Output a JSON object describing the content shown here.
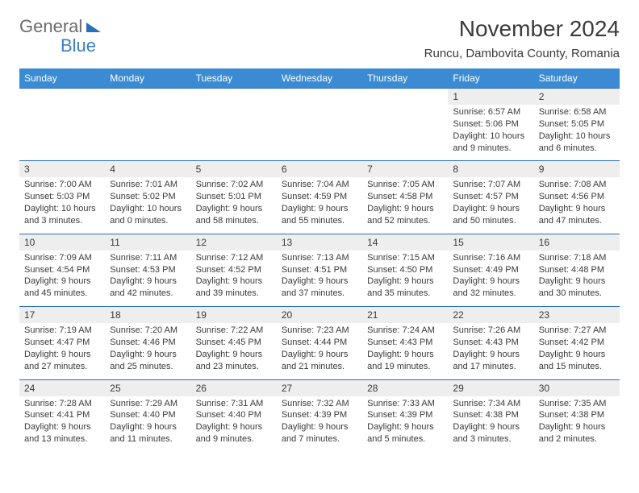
{
  "brand": {
    "part1": "General",
    "part2": "Blue"
  },
  "title": "November 2024",
  "location": "Runcu, Dambovita County, Romania",
  "colors": {
    "header_bg": "#3b8bd4",
    "header_text": "#ffffff",
    "daynum_bg": "#eeeeee",
    "rule": "#2b6fb3",
    "text": "#3a3a3a",
    "logo_gray": "#6b6b6b",
    "logo_blue": "#3b7fc4",
    "background": "#ffffff"
  },
  "typography": {
    "title_fontsize": 28,
    "location_fontsize": 15,
    "weekday_fontsize": 12,
    "daynum_fontsize": 12,
    "cell_fontsize": 11
  },
  "weekdays": [
    "Sunday",
    "Monday",
    "Tuesday",
    "Wednesday",
    "Thursday",
    "Friday",
    "Saturday"
  ],
  "weeks": [
    {
      "nums": [
        "",
        "",
        "",
        "",
        "",
        "1",
        "2"
      ],
      "cells": [
        null,
        null,
        null,
        null,
        null,
        {
          "sunrise": "Sunrise: 6:57 AM",
          "sunset": "Sunset: 5:06 PM",
          "daylight": "Daylight: 10 hours and 9 minutes."
        },
        {
          "sunrise": "Sunrise: 6:58 AM",
          "sunset": "Sunset: 5:05 PM",
          "daylight": "Daylight: 10 hours and 6 minutes."
        }
      ]
    },
    {
      "nums": [
        "3",
        "4",
        "5",
        "6",
        "7",
        "8",
        "9"
      ],
      "cells": [
        {
          "sunrise": "Sunrise: 7:00 AM",
          "sunset": "Sunset: 5:03 PM",
          "daylight": "Daylight: 10 hours and 3 minutes."
        },
        {
          "sunrise": "Sunrise: 7:01 AM",
          "sunset": "Sunset: 5:02 PM",
          "daylight": "Daylight: 10 hours and 0 minutes."
        },
        {
          "sunrise": "Sunrise: 7:02 AM",
          "sunset": "Sunset: 5:01 PM",
          "daylight": "Daylight: 9 hours and 58 minutes."
        },
        {
          "sunrise": "Sunrise: 7:04 AM",
          "sunset": "Sunset: 4:59 PM",
          "daylight": "Daylight: 9 hours and 55 minutes."
        },
        {
          "sunrise": "Sunrise: 7:05 AM",
          "sunset": "Sunset: 4:58 PM",
          "daylight": "Daylight: 9 hours and 52 minutes."
        },
        {
          "sunrise": "Sunrise: 7:07 AM",
          "sunset": "Sunset: 4:57 PM",
          "daylight": "Daylight: 9 hours and 50 minutes."
        },
        {
          "sunrise": "Sunrise: 7:08 AM",
          "sunset": "Sunset: 4:56 PM",
          "daylight": "Daylight: 9 hours and 47 minutes."
        }
      ]
    },
    {
      "nums": [
        "10",
        "11",
        "12",
        "13",
        "14",
        "15",
        "16"
      ],
      "cells": [
        {
          "sunrise": "Sunrise: 7:09 AM",
          "sunset": "Sunset: 4:54 PM",
          "daylight": "Daylight: 9 hours and 45 minutes."
        },
        {
          "sunrise": "Sunrise: 7:11 AM",
          "sunset": "Sunset: 4:53 PM",
          "daylight": "Daylight: 9 hours and 42 minutes."
        },
        {
          "sunrise": "Sunrise: 7:12 AM",
          "sunset": "Sunset: 4:52 PM",
          "daylight": "Daylight: 9 hours and 39 minutes."
        },
        {
          "sunrise": "Sunrise: 7:13 AM",
          "sunset": "Sunset: 4:51 PM",
          "daylight": "Daylight: 9 hours and 37 minutes."
        },
        {
          "sunrise": "Sunrise: 7:15 AM",
          "sunset": "Sunset: 4:50 PM",
          "daylight": "Daylight: 9 hours and 35 minutes."
        },
        {
          "sunrise": "Sunrise: 7:16 AM",
          "sunset": "Sunset: 4:49 PM",
          "daylight": "Daylight: 9 hours and 32 minutes."
        },
        {
          "sunrise": "Sunrise: 7:18 AM",
          "sunset": "Sunset: 4:48 PM",
          "daylight": "Daylight: 9 hours and 30 minutes."
        }
      ]
    },
    {
      "nums": [
        "17",
        "18",
        "19",
        "20",
        "21",
        "22",
        "23"
      ],
      "cells": [
        {
          "sunrise": "Sunrise: 7:19 AM",
          "sunset": "Sunset: 4:47 PM",
          "daylight": "Daylight: 9 hours and 27 minutes."
        },
        {
          "sunrise": "Sunrise: 7:20 AM",
          "sunset": "Sunset: 4:46 PM",
          "daylight": "Daylight: 9 hours and 25 minutes."
        },
        {
          "sunrise": "Sunrise: 7:22 AM",
          "sunset": "Sunset: 4:45 PM",
          "daylight": "Daylight: 9 hours and 23 minutes."
        },
        {
          "sunrise": "Sunrise: 7:23 AM",
          "sunset": "Sunset: 4:44 PM",
          "daylight": "Daylight: 9 hours and 21 minutes."
        },
        {
          "sunrise": "Sunrise: 7:24 AM",
          "sunset": "Sunset: 4:43 PM",
          "daylight": "Daylight: 9 hours and 19 minutes."
        },
        {
          "sunrise": "Sunrise: 7:26 AM",
          "sunset": "Sunset: 4:43 PM",
          "daylight": "Daylight: 9 hours and 17 minutes."
        },
        {
          "sunrise": "Sunrise: 7:27 AM",
          "sunset": "Sunset: 4:42 PM",
          "daylight": "Daylight: 9 hours and 15 minutes."
        }
      ]
    },
    {
      "nums": [
        "24",
        "25",
        "26",
        "27",
        "28",
        "29",
        "30"
      ],
      "cells": [
        {
          "sunrise": "Sunrise: 7:28 AM",
          "sunset": "Sunset: 4:41 PM",
          "daylight": "Daylight: 9 hours and 13 minutes."
        },
        {
          "sunrise": "Sunrise: 7:29 AM",
          "sunset": "Sunset: 4:40 PM",
          "daylight": "Daylight: 9 hours and 11 minutes."
        },
        {
          "sunrise": "Sunrise: 7:31 AM",
          "sunset": "Sunset: 4:40 PM",
          "daylight": "Daylight: 9 hours and 9 minutes."
        },
        {
          "sunrise": "Sunrise: 7:32 AM",
          "sunset": "Sunset: 4:39 PM",
          "daylight": "Daylight: 9 hours and 7 minutes."
        },
        {
          "sunrise": "Sunrise: 7:33 AM",
          "sunset": "Sunset: 4:39 PM",
          "daylight": "Daylight: 9 hours and 5 minutes."
        },
        {
          "sunrise": "Sunrise: 7:34 AM",
          "sunset": "Sunset: 4:38 PM",
          "daylight": "Daylight: 9 hours and 3 minutes."
        },
        {
          "sunrise": "Sunrise: 7:35 AM",
          "sunset": "Sunset: 4:38 PM",
          "daylight": "Daylight: 9 hours and 2 minutes."
        }
      ]
    }
  ]
}
